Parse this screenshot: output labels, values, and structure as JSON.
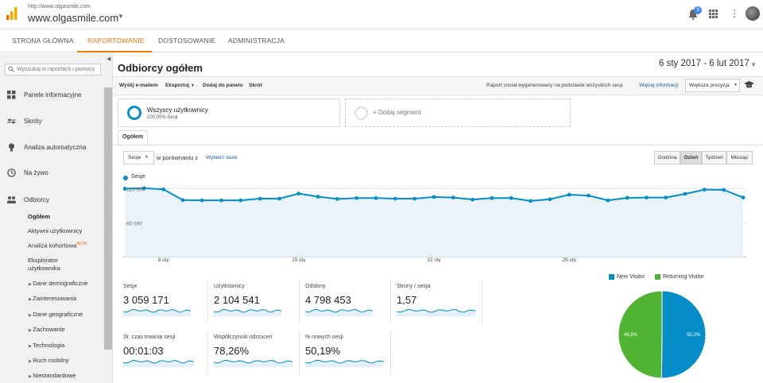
{
  "header": {
    "site_url": "http://www.olgasmile.com",
    "site_name": "www.olgasmile.com",
    "notification_count": "3"
  },
  "nav_tabs": [
    {
      "label": "STRONA GŁÓWNA",
      "active": false
    },
    {
      "label": "RAPORTOWANIE",
      "active": true
    },
    {
      "label": "DOSTOSOWANIE",
      "active": false
    },
    {
      "label": "ADMINISTRACJA",
      "active": false
    }
  ],
  "sidebar": {
    "search_placeholder": "Wyszukaj w raportach i pomocy",
    "sections": [
      {
        "label": "Panele informacyjne",
        "icon": "grid-icon"
      },
      {
        "label": "Skróty",
        "icon": "shortcut-arrows-icon"
      },
      {
        "label": "Analiza automatyczna",
        "icon": "lightbulb-icon"
      },
      {
        "label": "Na żywo",
        "icon": "clock-icon"
      },
      {
        "label": "Odbiorcy",
        "icon": "people-icon"
      }
    ],
    "audience_items": [
      {
        "label": "Ogółem",
        "active": true
      },
      {
        "label": "Aktywni użytkownicy"
      },
      {
        "label": "Analiza kohortowa",
        "badge": "BETA"
      },
      {
        "label": "Eksplorator użytkownika"
      }
    ],
    "expandable_items": [
      "Dane demograficzne",
      "Zainteresowania",
      "Dane geograficzne",
      "Zachowanie",
      "Technologia",
      "Ruch mobilny",
      "Niestandardowe"
    ]
  },
  "page": {
    "title": "Odbiorcy ogółem",
    "date_range": "6 sty 2017 - 6 lut 2017"
  },
  "toolbar": {
    "email": "Wyślij e-mailem",
    "export": "Eksportuj",
    "add_dashboard": "Dodaj do panelu",
    "shortcut": "Skrót",
    "note": "Raport został wygenerowany na podstawie wszystkich sesji.",
    "more_info": "Więcej informacji",
    "precision": "Większa precyzja"
  },
  "segments": {
    "all_users_title": "Wszyscy użytkownicy",
    "all_users_sub": "100,00% Sesji",
    "add_segment": "+ Dodaj segment"
  },
  "overview": {
    "tab_label": "Ogółem",
    "metric": "Sesje",
    "compare_label": "w porównaniu z",
    "choose_metric": "Wybierz dane",
    "periods": [
      {
        "label": "Godzina",
        "active": false
      },
      {
        "label": "Dzień",
        "active": true
      },
      {
        "label": "Tydzień",
        "active": false
      },
      {
        "label": "Miesiąc",
        "active": false
      }
    ]
  },
  "chart_data": {
    "type": "area",
    "series": [
      {
        "name": "Sesje",
        "values": [
          120000,
          121000,
          119000,
          100000,
          99500,
          99500,
          99500,
          102500,
          102500,
          111500,
          106000,
          102000,
          103500,
          103500,
          102500,
          102500,
          105500,
          104500,
          101000,
          103500,
          103500,
          98500,
          101500,
          109500,
          108000,
          99500,
          104000,
          104500,
          104500,
          111000,
          118500,
          118000,
          104500
        ]
      }
    ],
    "x_tick_labels": [
      "8 sty",
      "15 sty",
      "22 sty",
      "29 sty"
    ],
    "y_tick_labels": [
      "120 000",
      "60 000"
    ],
    "ylim": [
      0,
      125000
    ],
    "grid": true
  },
  "scorecards": [
    {
      "label": "Sesje",
      "value": "3 059 171"
    },
    {
      "label": "Użytkownicy",
      "value": "2 104 541"
    },
    {
      "label": "Odsłony",
      "value": "4 798 453"
    },
    {
      "label": "Strony / sesja",
      "value": "1,57"
    },
    {
      "label": "Śr. czas trwania sesji",
      "value": "00:01:03"
    },
    {
      "label": "Współczynnik odrzuceń",
      "value": "78,26%"
    },
    {
      "label": "% nowych sesji",
      "value": "50,19%"
    }
  ],
  "pie_chart": {
    "type": "pie",
    "legend": [
      {
        "name": "New Visitor",
        "color": "#058dc7"
      },
      {
        "name": "Returning Visitor",
        "color": "#50b432"
      }
    ],
    "values": [
      50.2,
      49.8
    ],
    "labels": [
      "50,2%",
      "49,8%"
    ]
  }
}
